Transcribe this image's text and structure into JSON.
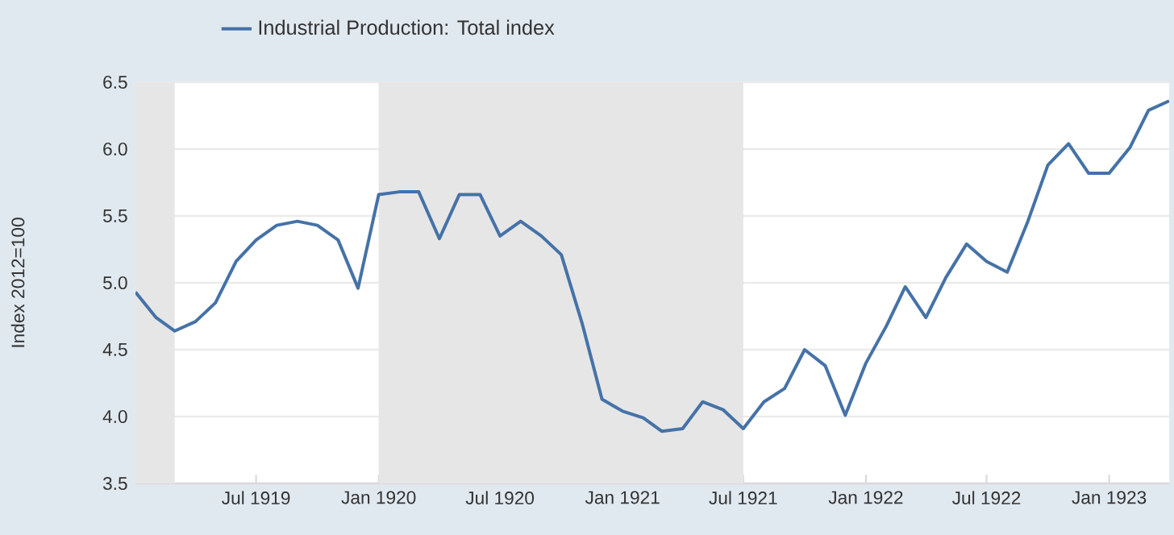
{
  "chart_data": {
    "type": "line",
    "ylabel": "Index 2012=100",
    "x": [
      "1919-01",
      "1919-02",
      "1919-03",
      "1919-04",
      "1919-05",
      "1919-06",
      "1919-07",
      "1919-08",
      "1919-09",
      "1919-10",
      "1919-11",
      "1919-12",
      "1920-01",
      "1920-02",
      "1920-03",
      "1920-04",
      "1920-05",
      "1920-06",
      "1920-07",
      "1920-08",
      "1920-09",
      "1920-10",
      "1920-11",
      "1920-12",
      "1921-01",
      "1921-02",
      "1921-03",
      "1921-04",
      "1921-05",
      "1921-06",
      "1921-07",
      "1921-08",
      "1921-09",
      "1921-10",
      "1921-11",
      "1921-12",
      "1922-01",
      "1922-02",
      "1922-03",
      "1922-04",
      "1922-05",
      "1922-06",
      "1922-07",
      "1922-08",
      "1922-09",
      "1922-10",
      "1922-11",
      "1922-12",
      "1923-01",
      "1923-02",
      "1923-03",
      "1923-04"
    ],
    "series": [
      {
        "name": "Industrial Production: Total index",
        "color": "#4572a7",
        "values": [
          4.93,
          4.74,
          4.64,
          4.71,
          4.85,
          5.16,
          5.32,
          5.43,
          5.46,
          5.43,
          5.32,
          4.96,
          5.66,
          5.68,
          5.68,
          5.33,
          5.66,
          5.66,
          5.35,
          5.46,
          5.35,
          5.21,
          4.7,
          4.13,
          4.04,
          3.99,
          3.89,
          3.91,
          4.11,
          4.05,
          3.91,
          4.11,
          4.21,
          4.5,
          4.38,
          4.01,
          4.4,
          4.68,
          4.97,
          4.74,
          5.04,
          5.29,
          5.16,
          5.08,
          5.46,
          5.88,
          6.04,
          5.82,
          5.82,
          6.01,
          6.29,
          6.36
        ]
      }
    ],
    "xlim": [
      "1919-01",
      "1923-04"
    ],
    "xticks": [
      {
        "value": "1919-07",
        "label": "Jul 1919"
      },
      {
        "value": "1920-01",
        "label": "Jan 1920"
      },
      {
        "value": "1920-07",
        "label": "Jul 1920"
      },
      {
        "value": "1921-01",
        "label": "Jan 1921"
      },
      {
        "value": "1921-07",
        "label": "Jul 1921"
      },
      {
        "value": "1922-01",
        "label": "Jan 1922"
      },
      {
        "value": "1922-07",
        "label": "Jul 1922"
      },
      {
        "value": "1923-01",
        "label": "Jan 1923"
      }
    ],
    "ylim": [
      3.5,
      6.5
    ],
    "yticks": [
      3.5,
      {
        "value": 4,
        "label": "4.0"
      },
      4.5,
      {
        "value": 5,
        "label": "5.0"
      },
      5.5,
      {
        "value": 6,
        "label": "6.0"
      },
      6.5
    ],
    "bands": [
      {
        "axis": "x",
        "from": "1919-01",
        "to": "1919-03",
        "color": "#e6e6e6"
      },
      {
        "axis": "x",
        "from": "1920-01",
        "to": "1921-07",
        "color": "#e6e6e6"
      }
    ],
    "grid": "y",
    "legend": "top left"
  }
}
